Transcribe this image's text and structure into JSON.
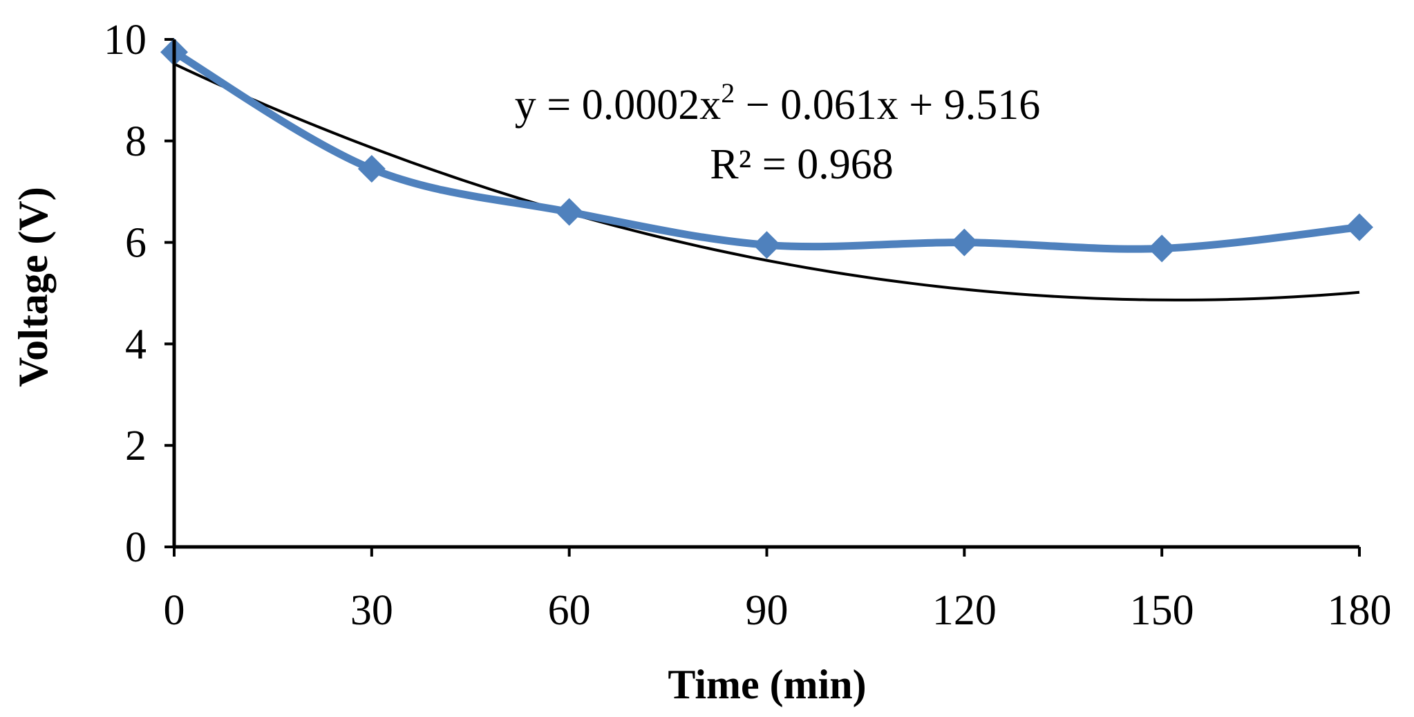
{
  "chart_data": {
    "type": "line",
    "xlabel": "Time (min)",
    "ylabel": "Voltage (V)",
    "x": [
      0,
      30,
      60,
      90,
      120,
      150,
      180
    ],
    "x_ticks": [
      "0",
      "30",
      "60",
      "90",
      "120",
      "150",
      "180"
    ],
    "y_ticks": [
      "0",
      "2",
      "4",
      "6",
      "8",
      "10"
    ],
    "xlim": [
      0,
      180
    ],
    "ylim": [
      0,
      10
    ],
    "grid": false,
    "legend": "none",
    "series": [
      {
        "values": [
          9.75,
          7.45,
          6.6,
          5.95,
          6.0,
          5.88,
          6.3
        ],
        "color": "#4F81BD",
        "marker": "diamond"
      }
    ],
    "trendline": {
      "type": "polynomial",
      "order": 2,
      "coefficients": [
        0.0002,
        -0.061,
        9.516
      ],
      "color": "#000000"
    },
    "annotations": {
      "equation_parts": [
        "y = 0.0002x",
        "2",
        " − 0.061x + 9.516"
      ],
      "r_squared": "R² = 0.968"
    }
  }
}
